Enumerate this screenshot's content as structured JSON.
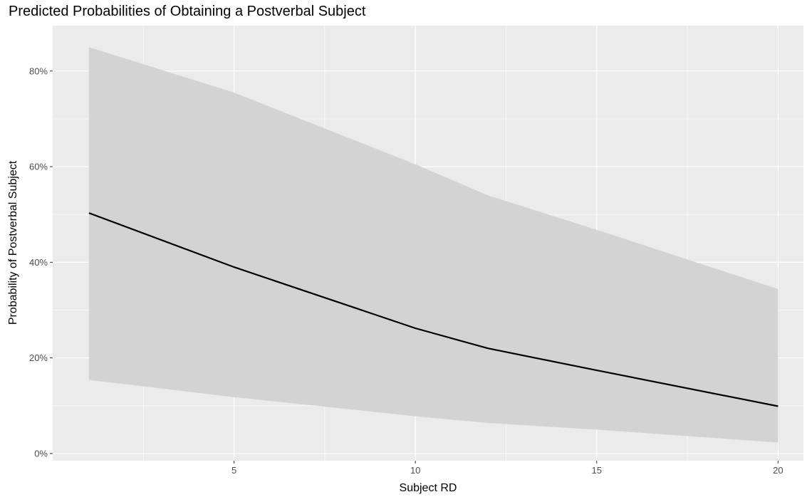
{
  "chart_data": {
    "type": "line",
    "title": "Predicted Probabilities of Obtaining a Postverbal Subject",
    "xlabel": "Subject RD",
    "ylabel": "Probability of Postverbal Subject",
    "xlim": [
      0,
      20.7
    ],
    "ylim": [
      -0.015,
      0.895
    ],
    "x_ticks": [
      5,
      10,
      15,
      20
    ],
    "x_tick_labels": [
      "5",
      "10",
      "15",
      "20"
    ],
    "y_ticks": [
      0,
      0.2,
      0.4,
      0.6,
      0.8
    ],
    "y_tick_labels": [
      "0%",
      "20%",
      "40%",
      "60%",
      "80%"
    ],
    "grid": true,
    "series": [
      {
        "x": [
          1,
          5,
          10,
          12,
          15,
          20
        ],
        "values": [
          0.503,
          0.39,
          0.262,
          0.22,
          0.174,
          0.099
        ],
        "upper": [
          0.85,
          0.755,
          0.605,
          0.54,
          0.468,
          0.344
        ],
        "lower": [
          0.154,
          0.118,
          0.078,
          0.064,
          0.05,
          0.023
        ]
      }
    ],
    "colors": {
      "panel": "#EBEBEB",
      "grid": "#FFFFFF",
      "ribbon": "#D3D3D3",
      "line": "#000000",
      "tick_text": "#4D4D4D"
    }
  }
}
